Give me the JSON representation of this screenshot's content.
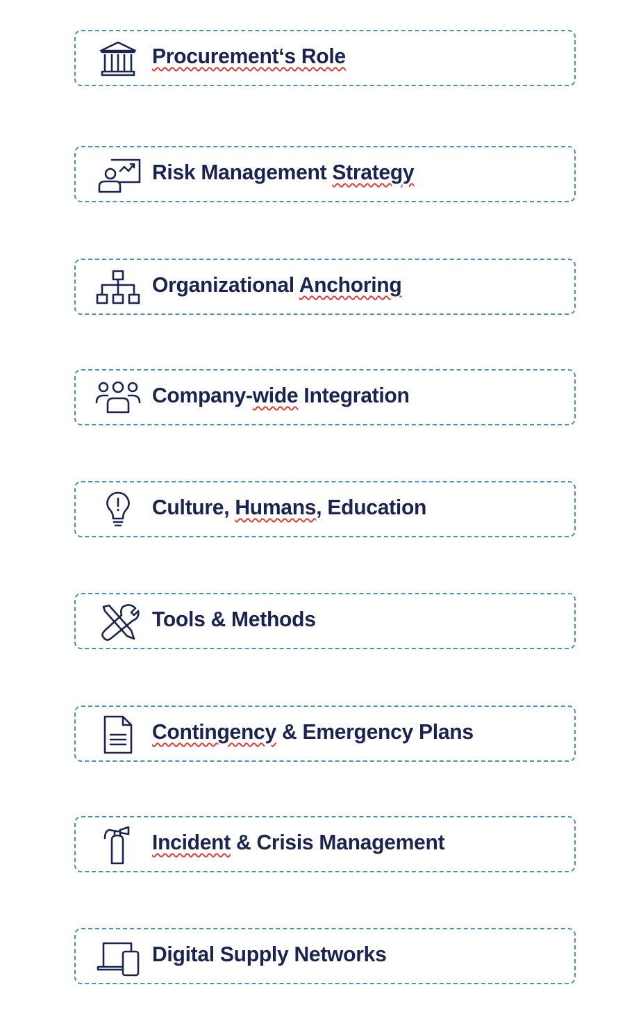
{
  "colors": {
    "text": "#1b2450",
    "border": "#4a8fb9",
    "spellcheck": "#e53935"
  },
  "items": [
    {
      "icon": "bank-icon",
      "parts": [
        {
          "text": "Procurement‘s Role",
          "spell": true
        }
      ]
    },
    {
      "icon": "presentation-icon",
      "parts": [
        {
          "text": "Risk Management ",
          "spell": false
        },
        {
          "text": "Strategy",
          "spell": true
        }
      ]
    },
    {
      "icon": "org-chart-icon",
      "parts": [
        {
          "text": "Organizational ",
          "spell": false
        },
        {
          "text": "Anchoring",
          "spell": true
        }
      ]
    },
    {
      "icon": "group-icon",
      "parts": [
        {
          "text": "Company-",
          "spell": false
        },
        {
          "text": "wide",
          "spell": true
        },
        {
          "text": " Integration",
          "spell": false
        }
      ]
    },
    {
      "icon": "lightbulb-icon",
      "parts": [
        {
          "text": "Culture, ",
          "spell": false
        },
        {
          "text": "Humans",
          "spell": true
        },
        {
          "text": ", Education",
          "spell": false
        }
      ]
    },
    {
      "icon": "tools-icon",
      "parts": [
        {
          "text": "Tools & Methods",
          "spell": false
        }
      ]
    },
    {
      "icon": "document-icon",
      "parts": [
        {
          "text": "Contingency",
          "spell": true
        },
        {
          "text": " & Emergency Plans",
          "spell": false
        }
      ]
    },
    {
      "icon": "fire-extinguisher-icon",
      "parts": [
        {
          "text": "Incident",
          "spell": true
        },
        {
          "text": " & Crisis Management",
          "spell": false
        }
      ]
    },
    {
      "icon": "devices-icon",
      "parts": [
        {
          "text": "Digital Supply Networks",
          "spell": false
        }
      ]
    }
  ]
}
